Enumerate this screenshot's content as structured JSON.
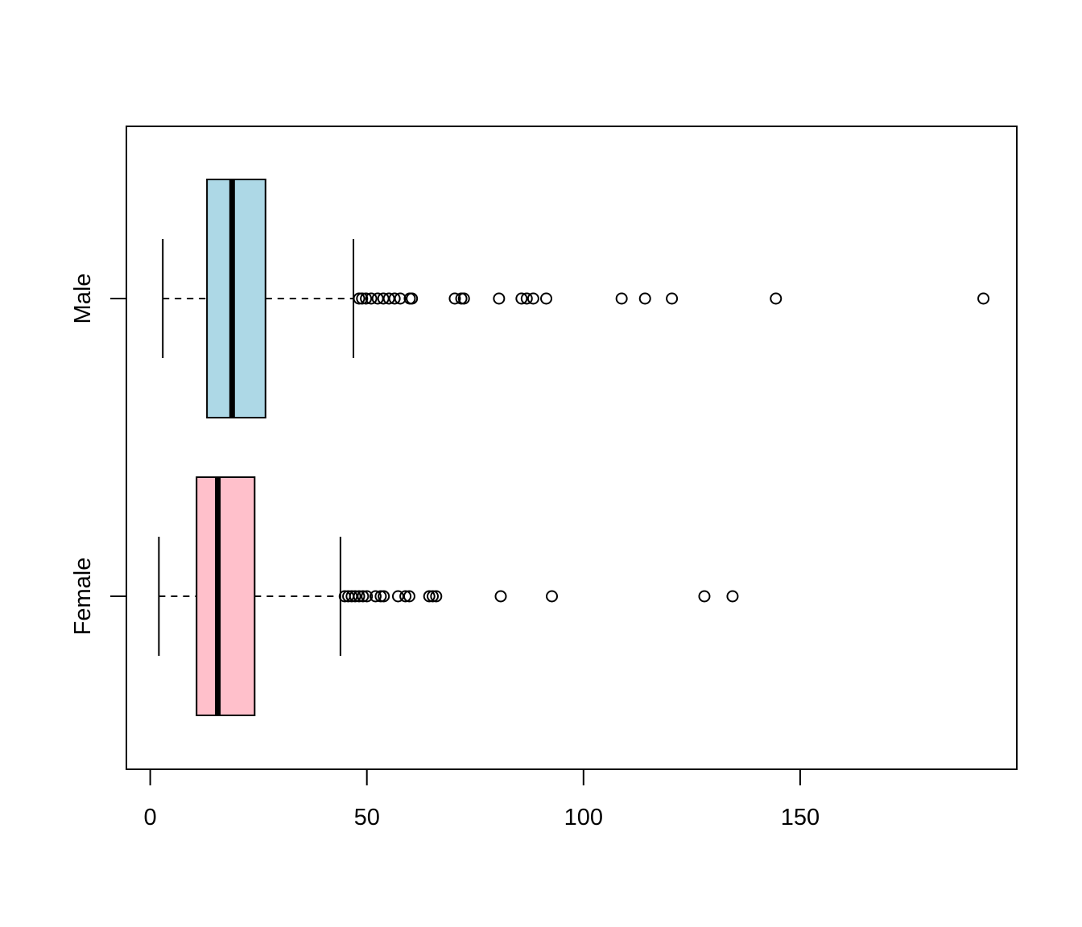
{
  "chart_data": {
    "type": "boxplot",
    "orientation": "horizontal",
    "title": "",
    "xlabel": "",
    "ylabel": "",
    "xlim": [
      -5.5,
      200
    ],
    "x_ticks": [
      0,
      50,
      100,
      150
    ],
    "x_tick_labels": [
      "0",
      "50",
      "100",
      "150"
    ],
    "grid": false,
    "legend": "none",
    "categories": [
      "Female",
      "Male"
    ],
    "series": [
      {
        "category": "Female",
        "color": "#FFC0CB",
        "whisker_low": 2,
        "q1": 10.7,
        "median": 15.6,
        "q3": 24.1,
        "whisker_high": 43.9,
        "outliers": [
          44.9,
          45.7,
          46.5,
          47.3,
          48.2,
          49.1,
          50.0,
          52.0,
          53.2,
          53.9,
          57.2,
          58.9,
          59.8,
          64.4,
          65.2,
          66.0,
          80.9,
          92.7,
          127.9,
          134.4
        ]
      },
      {
        "category": "Male",
        "color": "#ADD8E6",
        "whisker_low": 2.9,
        "q1": 13.1,
        "median": 18.9,
        "q3": 26.6,
        "whisker_high": 46.9,
        "outliers": [
          48.2,
          48.9,
          49.8,
          51.0,
          52.5,
          53.8,
          55.1,
          56.4,
          57.7,
          59.9,
          60.4,
          70.3,
          71.8,
          72.4,
          80.5,
          85.7,
          86.9,
          88.4,
          91.4,
          108.8,
          114.2,
          120.4,
          144.4,
          192.3
        ]
      }
    ]
  }
}
